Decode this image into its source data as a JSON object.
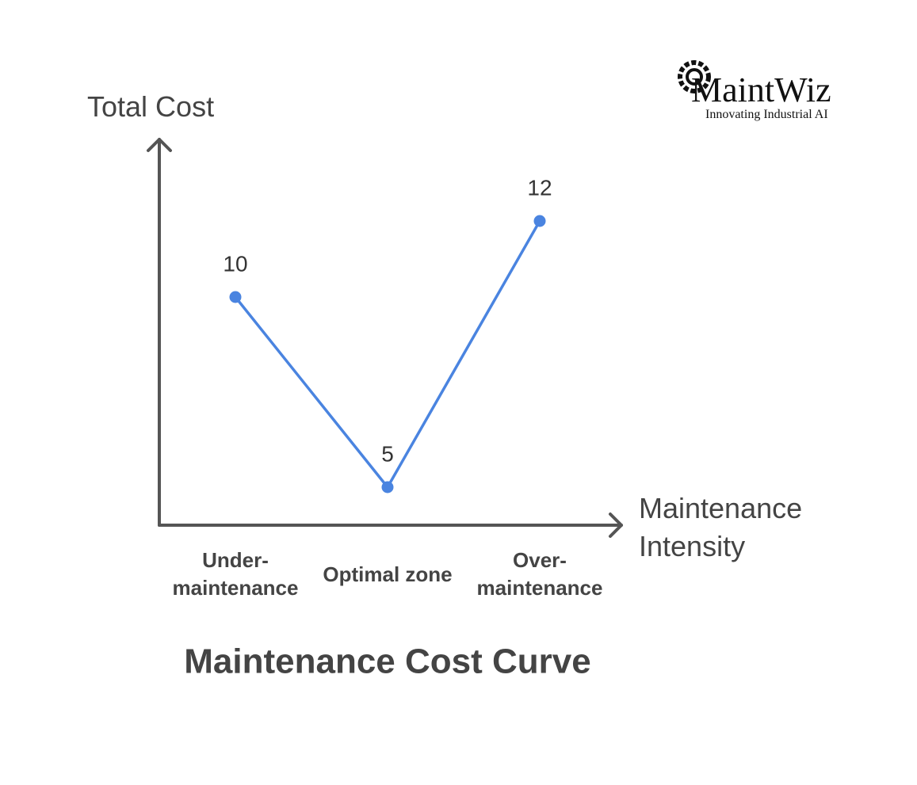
{
  "chart_data": {
    "type": "line",
    "title": "Maintenance Cost Curve",
    "y_label": "Total Cost",
    "x_label": "Maintenance Intensity",
    "categories": [
      "Under- maintenance",
      "Optimal zone",
      "Over- maintenance"
    ],
    "values": [
      10,
      5,
      12
    ],
    "color": "#4a84e0"
  },
  "logo": {
    "name": "MaintWiz",
    "tagline": "Innovating Industrial AI"
  }
}
